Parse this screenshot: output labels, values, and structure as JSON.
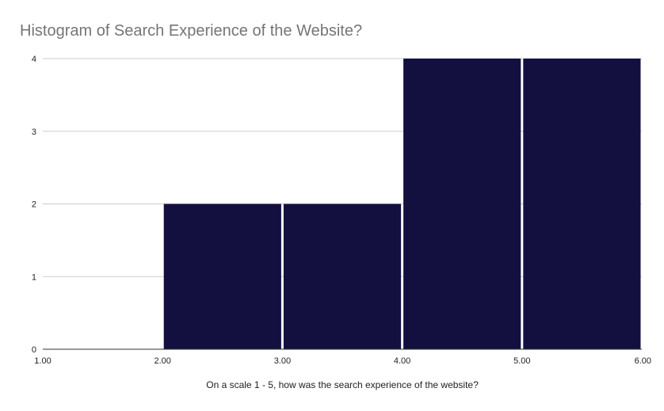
{
  "chart_data": {
    "type": "bar",
    "title": "Histogram of Search Experience of the Website?",
    "xlabel": "On a scale 1 - 5, how was the search experience of the website?",
    "ylabel": "",
    "bins": [
      {
        "start": 1.0,
        "end": 2.0,
        "count": 0
      },
      {
        "start": 2.0,
        "end": 3.0,
        "count": 2
      },
      {
        "start": 3.0,
        "end": 4.0,
        "count": 2
      },
      {
        "start": 4.0,
        "end": 5.0,
        "count": 4
      },
      {
        "start": 5.0,
        "end": 6.0,
        "count": 4
      }
    ],
    "x_ticks": [
      "1.00",
      "2.00",
      "3.00",
      "4.00",
      "5.00",
      "6.00"
    ],
    "y_ticks": [
      "0",
      "1",
      "2",
      "3",
      "4"
    ],
    "xlim": [
      1,
      6
    ],
    "ylim": [
      0,
      4
    ],
    "grid": true,
    "legend": "none",
    "bar_color": "#131040",
    "grid_color": "#cccccc",
    "title_color": "#757575"
  }
}
